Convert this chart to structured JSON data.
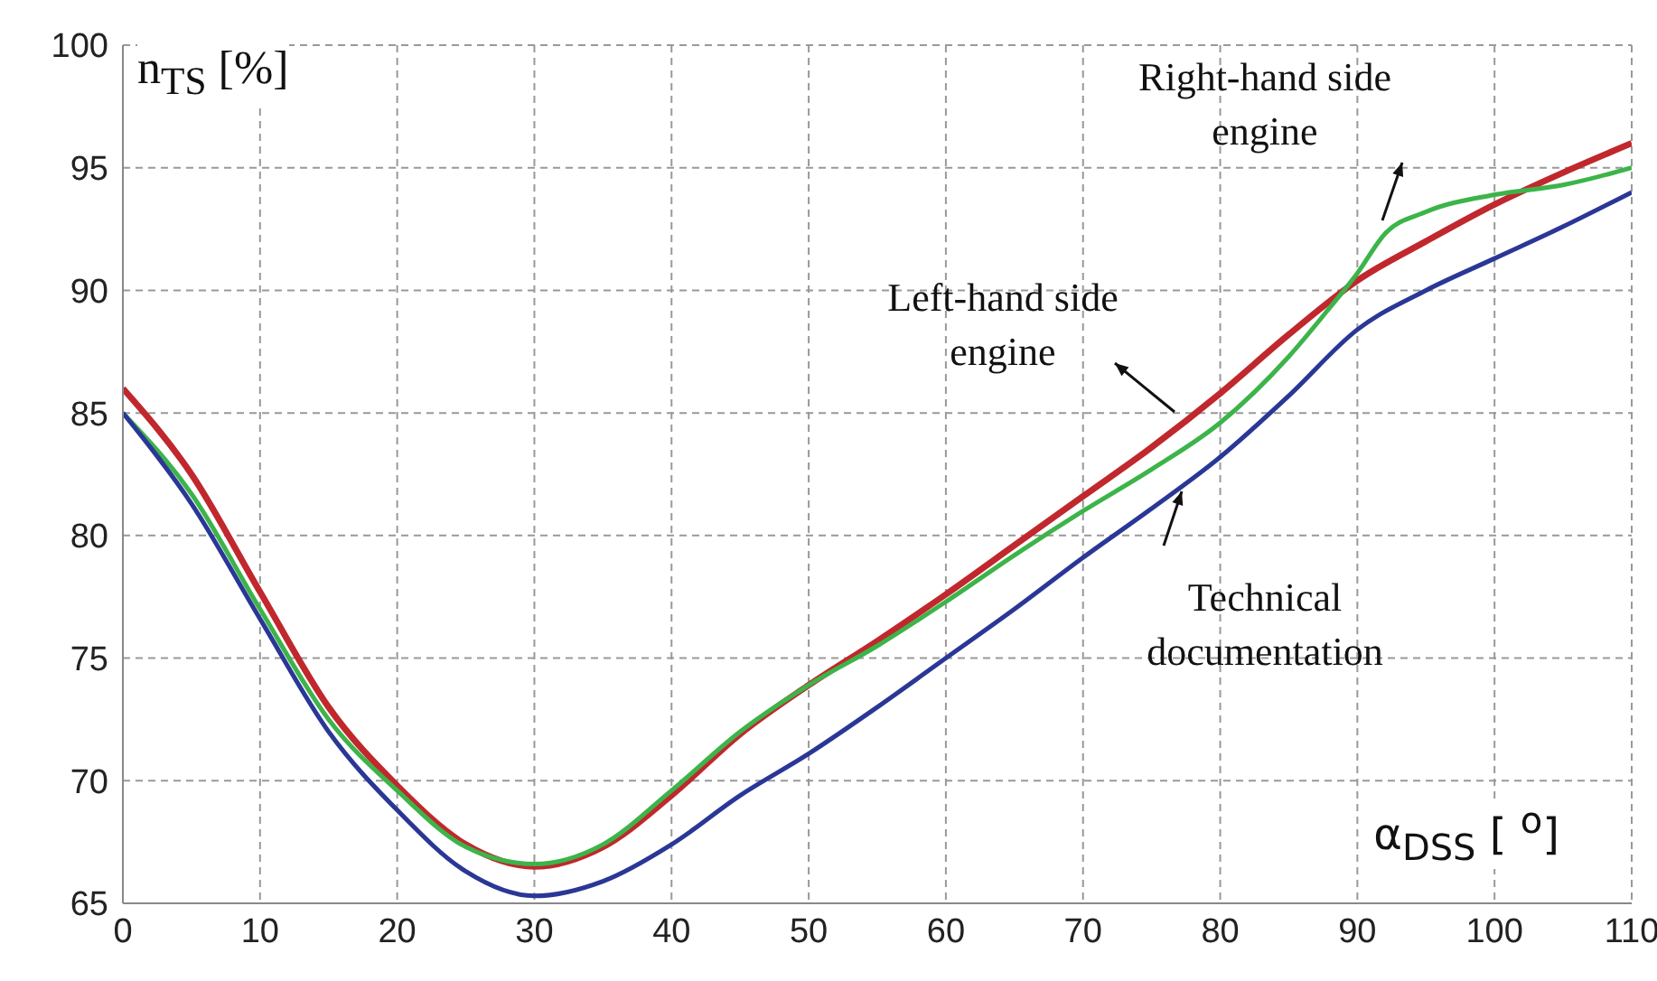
{
  "chart_data": {
    "type": "line",
    "xlabel": "α$_{DSS}$ [ $^{o}$]",
    "ylabel": "n$_{TS}$ [%]",
    "xlim": [
      0,
      110
    ],
    "xticks": [
      0,
      10,
      20,
      30,
      40,
      50,
      60,
      70,
      80,
      90,
      100,
      110
    ],
    "ylim": [
      65,
      100
    ],
    "yticks": [
      65,
      70,
      75,
      80,
      85,
      90,
      95,
      100
    ],
    "grid": true,
    "legend": false,
    "line_style": "solid",
    "marker": "none",
    "series": [
      {
        "name": "Left-hand side engine",
        "color": "#c0282d",
        "x": [
          0,
          5,
          10,
          15,
          20,
          25,
          30,
          35,
          40,
          45,
          50,
          55,
          60,
          65,
          70,
          75,
          80,
          85,
          90,
          95,
          100,
          105,
          110
        ],
        "values": [
          86,
          82.5,
          77.7,
          73,
          69.8,
          67.4,
          66.5,
          67.3,
          69.4,
          71.9,
          73.9,
          75.7,
          77.6,
          79.6,
          81.6,
          83.6,
          85.8,
          88.2,
          90.4,
          92,
          93.5,
          94.8,
          96
        ]
      },
      {
        "name": "Right-hand side engine",
        "color": "#3cb44a",
        "x": [
          0,
          5,
          10,
          15,
          20,
          25,
          30,
          35,
          40,
          45,
          50,
          55,
          60,
          65,
          70,
          75,
          80,
          85,
          88,
          90,
          92,
          95,
          100,
          105,
          110
        ],
        "values": [
          85,
          81.7,
          77,
          72.5,
          69.6,
          67.3,
          66.6,
          67.4,
          69.6,
          72,
          73.9,
          75.5,
          77.3,
          79.2,
          81,
          82.7,
          84.6,
          87.3,
          89.3,
          90.7,
          92.3,
          93.2,
          93.9,
          94.3,
          95
        ]
      },
      {
        "name": "Technical documentation",
        "color": "#2a3796",
        "x": [
          0,
          5,
          10,
          15,
          20,
          25,
          30,
          35,
          40,
          45,
          50,
          55,
          60,
          65,
          70,
          75,
          80,
          85,
          90,
          95,
          100,
          105,
          110
        ],
        "values": [
          85,
          81.3,
          76.6,
          72,
          68.8,
          66.3,
          65.3,
          65.9,
          67.4,
          69.4,
          71.1,
          73,
          75,
          77,
          79.1,
          81.1,
          83.2,
          85.7,
          88.4,
          90,
          91.3,
          92.6,
          94
        ]
      }
    ]
  }
}
